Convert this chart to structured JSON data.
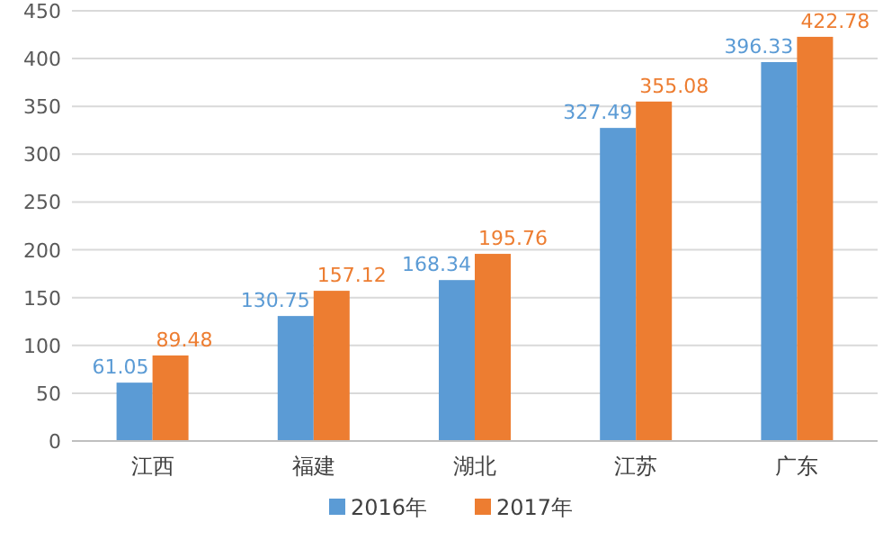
{
  "chart_data": {
    "type": "bar",
    "categories": [
      "江西",
      "福建",
      "湖北",
      "江苏",
      "广东"
    ],
    "series": [
      {
        "name": "2016年",
        "color": "#5b9bd5",
        "values": [
          61.05,
          130.75,
          168.34,
          327.49,
          396.33
        ]
      },
      {
        "name": "2017年",
        "color": "#ed7d31",
        "values": [
          89.48,
          157.12,
          195.76,
          355.08,
          422.78
        ]
      }
    ],
    "ylim": [
      0,
      450
    ],
    "yticks": [
      0,
      50,
      100,
      150,
      200,
      250,
      300,
      350,
      400,
      450
    ],
    "grid": "y",
    "legend": "bottom",
    "data_labels": true
  }
}
